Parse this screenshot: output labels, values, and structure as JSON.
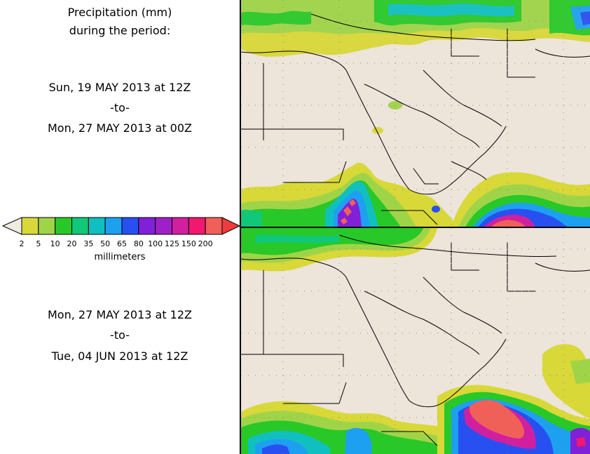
{
  "header": {
    "title_line1": "Precipitation (mm)",
    "title_line2": "during the period:"
  },
  "period1": {
    "start": "Sun, 19 MAY 2013 at 12Z",
    "sep": "-to-",
    "end": "Mon, 27 MAY 2013 at 00Z"
  },
  "period2": {
    "start": "Mon, 27 MAY 2013 at 12Z",
    "sep": "-to-",
    "end": "Tue, 04 JUN 2013 at 12Z"
  },
  "legend": {
    "units": "millimeters",
    "labels": [
      "2",
      "5",
      "10",
      "20",
      "35",
      "50",
      "65",
      "80",
      "100",
      "125",
      "150",
      "200"
    ],
    "colors": [
      "#d8d838",
      "#a0d448",
      "#28c828",
      "#10c878",
      "#10c0c0",
      "#1ea0f0",
      "#2850f0",
      "#8020d8",
      "#a020c8",
      "#d020a0",
      "#f01870",
      "#f06058"
    ],
    "extend_low_color": "#f0ebe3",
    "extend_high_color": "#ee3c3c"
  },
  "map": {
    "land_color": "#ede4da",
    "border_color": "#000000",
    "grid_color": "#8a8a8a"
  }
}
